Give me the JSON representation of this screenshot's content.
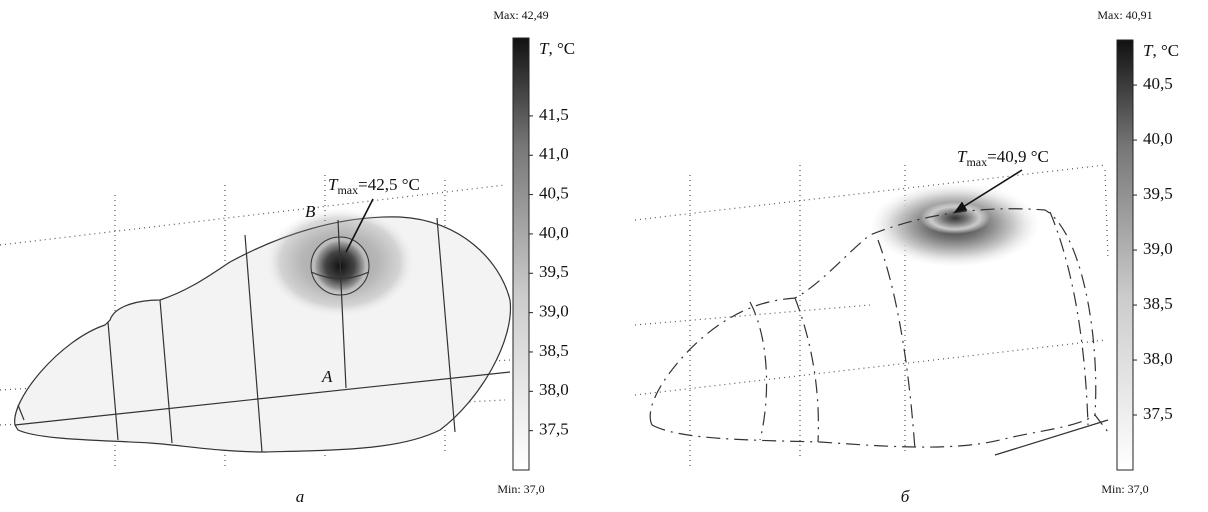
{
  "panels": [
    {
      "caption": "a",
      "colorbar": {
        "max": {
          "value": 42.49,
          "label": "Max: 42,49"
        },
        "min": {
          "value": 37.0,
          "label": "Min: 37,0"
        },
        "title": {
          "symbol": "T",
          "unit": ", °C"
        },
        "ticks": [
          {
            "value": 41.5,
            "label": "41,5"
          },
          {
            "value": 41.0,
            "label": "41,0"
          },
          {
            "value": 40.5,
            "label": "40,5"
          },
          {
            "value": 40.0,
            "label": "40,0"
          },
          {
            "value": 39.5,
            "label": "39,5"
          },
          {
            "value": 39.0,
            "label": "39,0"
          },
          {
            "value": 38.5,
            "label": "38,5"
          },
          {
            "value": 38.0,
            "label": "38,0"
          },
          {
            "value": 37.5,
            "label": "37,5"
          }
        ]
      },
      "annotation": {
        "symbol": "T",
        "subscript": "max",
        "text": "=42,5 °C"
      },
      "points": [
        "B",
        "A"
      ]
    },
    {
      "caption": "б",
      "colorbar": {
        "max": {
          "value": 40.91,
          "label": "Max: 40,91"
        },
        "min": {
          "value": 37.0,
          "label": "Min: 37,0"
        },
        "title": {
          "symbol": "T",
          "unit": ", °C"
        },
        "ticks": [
          {
            "value": 40.5,
            "label": "40,5"
          },
          {
            "value": 40.0,
            "label": "40,0"
          },
          {
            "value": 39.5,
            "label": "39,5"
          },
          {
            "value": 39.0,
            "label": "39,0"
          },
          {
            "value": 38.5,
            "label": "38,5"
          },
          {
            "value": 38.0,
            "label": "38,0"
          },
          {
            "value": 37.5,
            "label": "37,5"
          }
        ]
      },
      "annotation": {
        "symbol": "T",
        "subscript": "max",
        "text": "=40,9 °C"
      }
    }
  ]
}
